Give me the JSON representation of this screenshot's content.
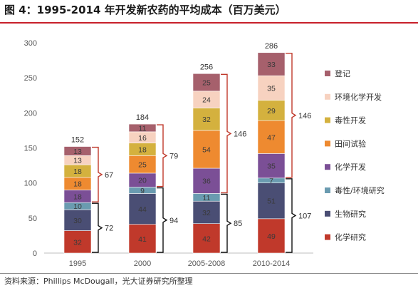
{
  "title": "图 4：1995-2014 年开发新农药的平均成本（百万美元）",
  "source": "资料来源：Phillips McDougall，光大证券研究所整理",
  "chart_data": {
    "type": "bar",
    "stacked": true,
    "categories": [
      "1995",
      "2000",
      "2005-2008",
      "2010-2014"
    ],
    "ylim": [
      0,
      300
    ],
    "yticks": [
      0,
      50,
      100,
      150,
      200,
      250,
      300
    ],
    "totals": [
      152,
      184,
      256,
      286
    ],
    "series": [
      {
        "name": "化学研究",
        "color": "#c0392b",
        "values": [
          32,
          41,
          42,
          49
        ]
      },
      {
        "name": "生物研究",
        "color": "#4a4e74",
        "values": [
          30,
          44,
          32,
          51
        ]
      },
      {
        "name": "毒性/环境研究",
        "color": "#6a9bb0",
        "values": [
          10,
          9,
          11,
          7
        ]
      },
      {
        "name": "化学开发",
        "color": "#7b4f96",
        "values": [
          18,
          20,
          36,
          35
        ]
      },
      {
        "name": "田间试验",
        "color": "#ee8a30",
        "values": [
          18,
          25,
          54,
          47
        ]
      },
      {
        "name": "毒性开发",
        "color": "#d4b13e",
        "values": [
          18,
          18,
          32,
          29
        ]
      },
      {
        "name": "环境化学开发",
        "color": "#f7d2c0",
        "values": [
          13,
          16,
          24,
          35
        ]
      },
      {
        "name": "登记",
        "color": "#a6606c",
        "values": [
          13,
          11,
          25,
          33
        ]
      }
    ],
    "brackets": {
      "research": [
        72,
        94,
        85,
        107
      ],
      "development": [
        67,
        79,
        146,
        146
      ]
    },
    "legend_position": "right"
  }
}
